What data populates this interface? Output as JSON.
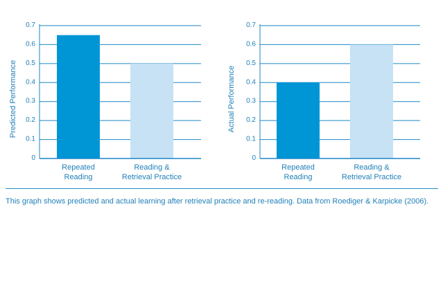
{
  "chart_data": [
    {
      "type": "bar",
      "ylabel": "Predicted Performance",
      "categories": [
        [
          "Repeated",
          "Reading"
        ],
        [
          "Reading &",
          "Retrieval Practice"
        ]
      ],
      "values": [
        0.65,
        0.5
      ],
      "ylim": [
        0,
        0.7
      ],
      "yticks": [
        "0",
        "0.1",
        "0.2",
        "0.3",
        "0.4",
        "0.5",
        "0.6",
        "0.7"
      ],
      "bar_colors": [
        "#0096d6",
        "#c6e2f4"
      ],
      "grid": true
    },
    {
      "type": "bar",
      "ylabel": "Actual Performance",
      "categories": [
        [
          "Repeated",
          "Reading"
        ],
        [
          "Reading &",
          "Retrieval Practice"
        ]
      ],
      "values": [
        0.4,
        0.6
      ],
      "ylim": [
        0,
        0.7
      ],
      "yticks": [
        "0",
        "0.1",
        "0.2",
        "0.3",
        "0.4",
        "0.5",
        "0.6",
        "0.7"
      ],
      "bar_colors": [
        "#0096d6",
        "#c6e2f4"
      ],
      "grid": true
    }
  ],
  "caption": "This graph shows predicted and actual learning after retrieval practice and re-reading. Data from Roediger & Karpicke (2006).",
  "colors": {
    "axis": "#1a86c6",
    "text": "#1f7fb8"
  }
}
